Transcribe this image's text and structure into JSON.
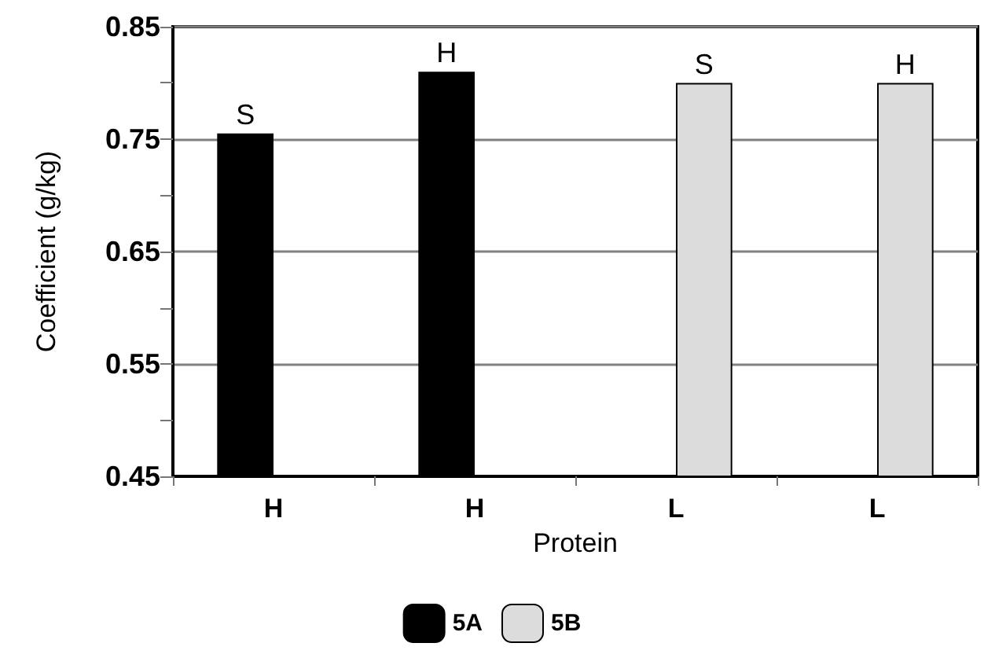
{
  "chart_data": {
    "type": "bar",
    "xlabel": "Protein",
    "ylabel": "Coefficient (g/kg)",
    "categories": [
      "H",
      "H",
      "L",
      "L"
    ],
    "series": [
      {
        "name": "5A",
        "color": "#000000",
        "values": [
          0.755,
          0.81,
          null,
          null
        ],
        "value_labels": [
          "S",
          "H",
          null,
          null
        ]
      },
      {
        "name": "5B",
        "color": "#dcdcdc",
        "values": [
          null,
          null,
          0.8,
          0.8
        ],
        "value_labels": [
          null,
          null,
          "S",
          "H"
        ]
      }
    ],
    "ylim": [
      0.45,
      0.85
    ],
    "yticks": [
      0.45,
      {
        "value": 0.5,
        "label": null
      },
      0.55,
      {
        "value": 0.6,
        "label": null
      },
      0.65,
      {
        "value": 0.7,
        "label": null
      },
      0.75,
      {
        "value": 0.8,
        "label": null
      },
      0.85
    ],
    "grid": "y",
    "legend": "bottom"
  }
}
